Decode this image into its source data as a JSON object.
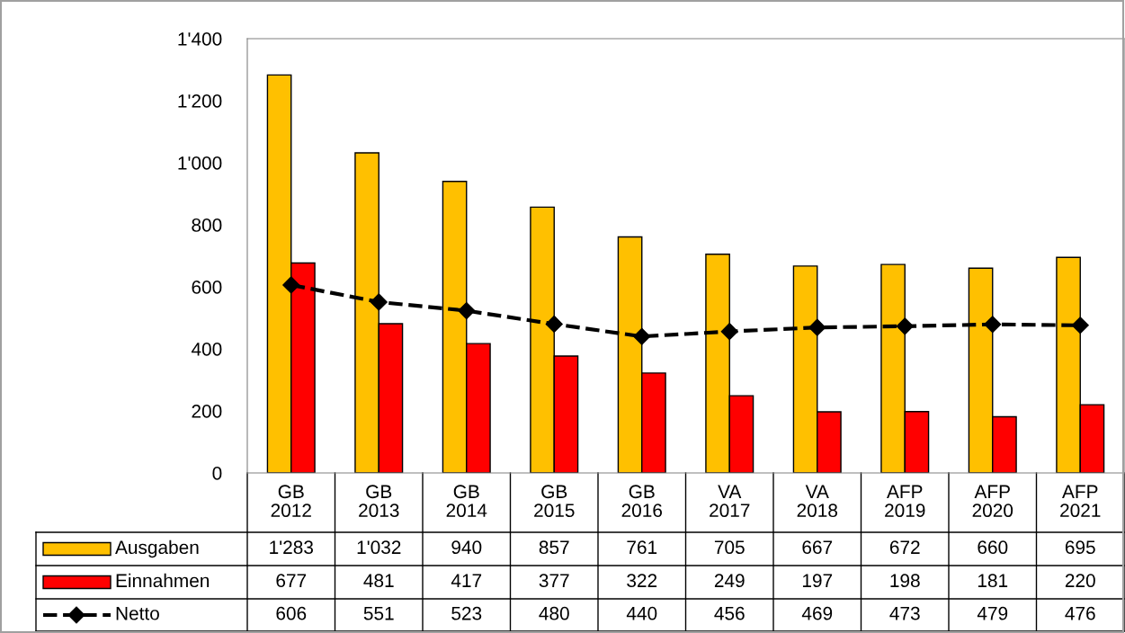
{
  "chart_data": {
    "type": "bar",
    "categories": [
      "GB\n2012",
      "GB\n2013",
      "GB\n2014",
      "GB\n2015",
      "GB\n2016",
      "VA\n2017",
      "VA\n2018",
      "AFP\n2019",
      "AFP\n2020",
      "AFP\n2021"
    ],
    "series": [
      {
        "name": "Ausgaben",
        "color": "#ffc000",
        "values": [
          1283,
          1032,
          940,
          857,
          761,
          705,
          667,
          672,
          660,
          695
        ],
        "value_labels": [
          "1'283",
          "1'032",
          "940",
          "857",
          "761",
          "705",
          "667",
          "672",
          "660",
          "695"
        ]
      },
      {
        "name": "Einnahmen",
        "color": "#ff0000",
        "values": [
          677,
          481,
          417,
          377,
          322,
          249,
          197,
          198,
          181,
          220
        ],
        "value_labels": [
          "677",
          "481",
          "417",
          "377",
          "322",
          "249",
          "197",
          "198",
          "181",
          "220"
        ]
      },
      {
        "name": "Netto",
        "type": "line",
        "color": "#000000",
        "marker": "diamond",
        "line_style": "dashed",
        "values": [
          606,
          551,
          523,
          480,
          440,
          456,
          469,
          473,
          479,
          476
        ],
        "value_labels": [
          "606",
          "551",
          "523",
          "480",
          "440",
          "456",
          "469",
          "473",
          "479",
          "476"
        ]
      }
    ],
    "ylim": [
      0,
      1400
    ],
    "yticks": [
      0,
      200,
      400,
      600,
      800,
      {
        "value": 1000,
        "label": "1'000"
      },
      {
        "value": 1200,
        "label": "1'200"
      },
      {
        "value": 1400,
        "label": "1'400"
      }
    ],
    "grid": false,
    "legend": "bottom"
  }
}
